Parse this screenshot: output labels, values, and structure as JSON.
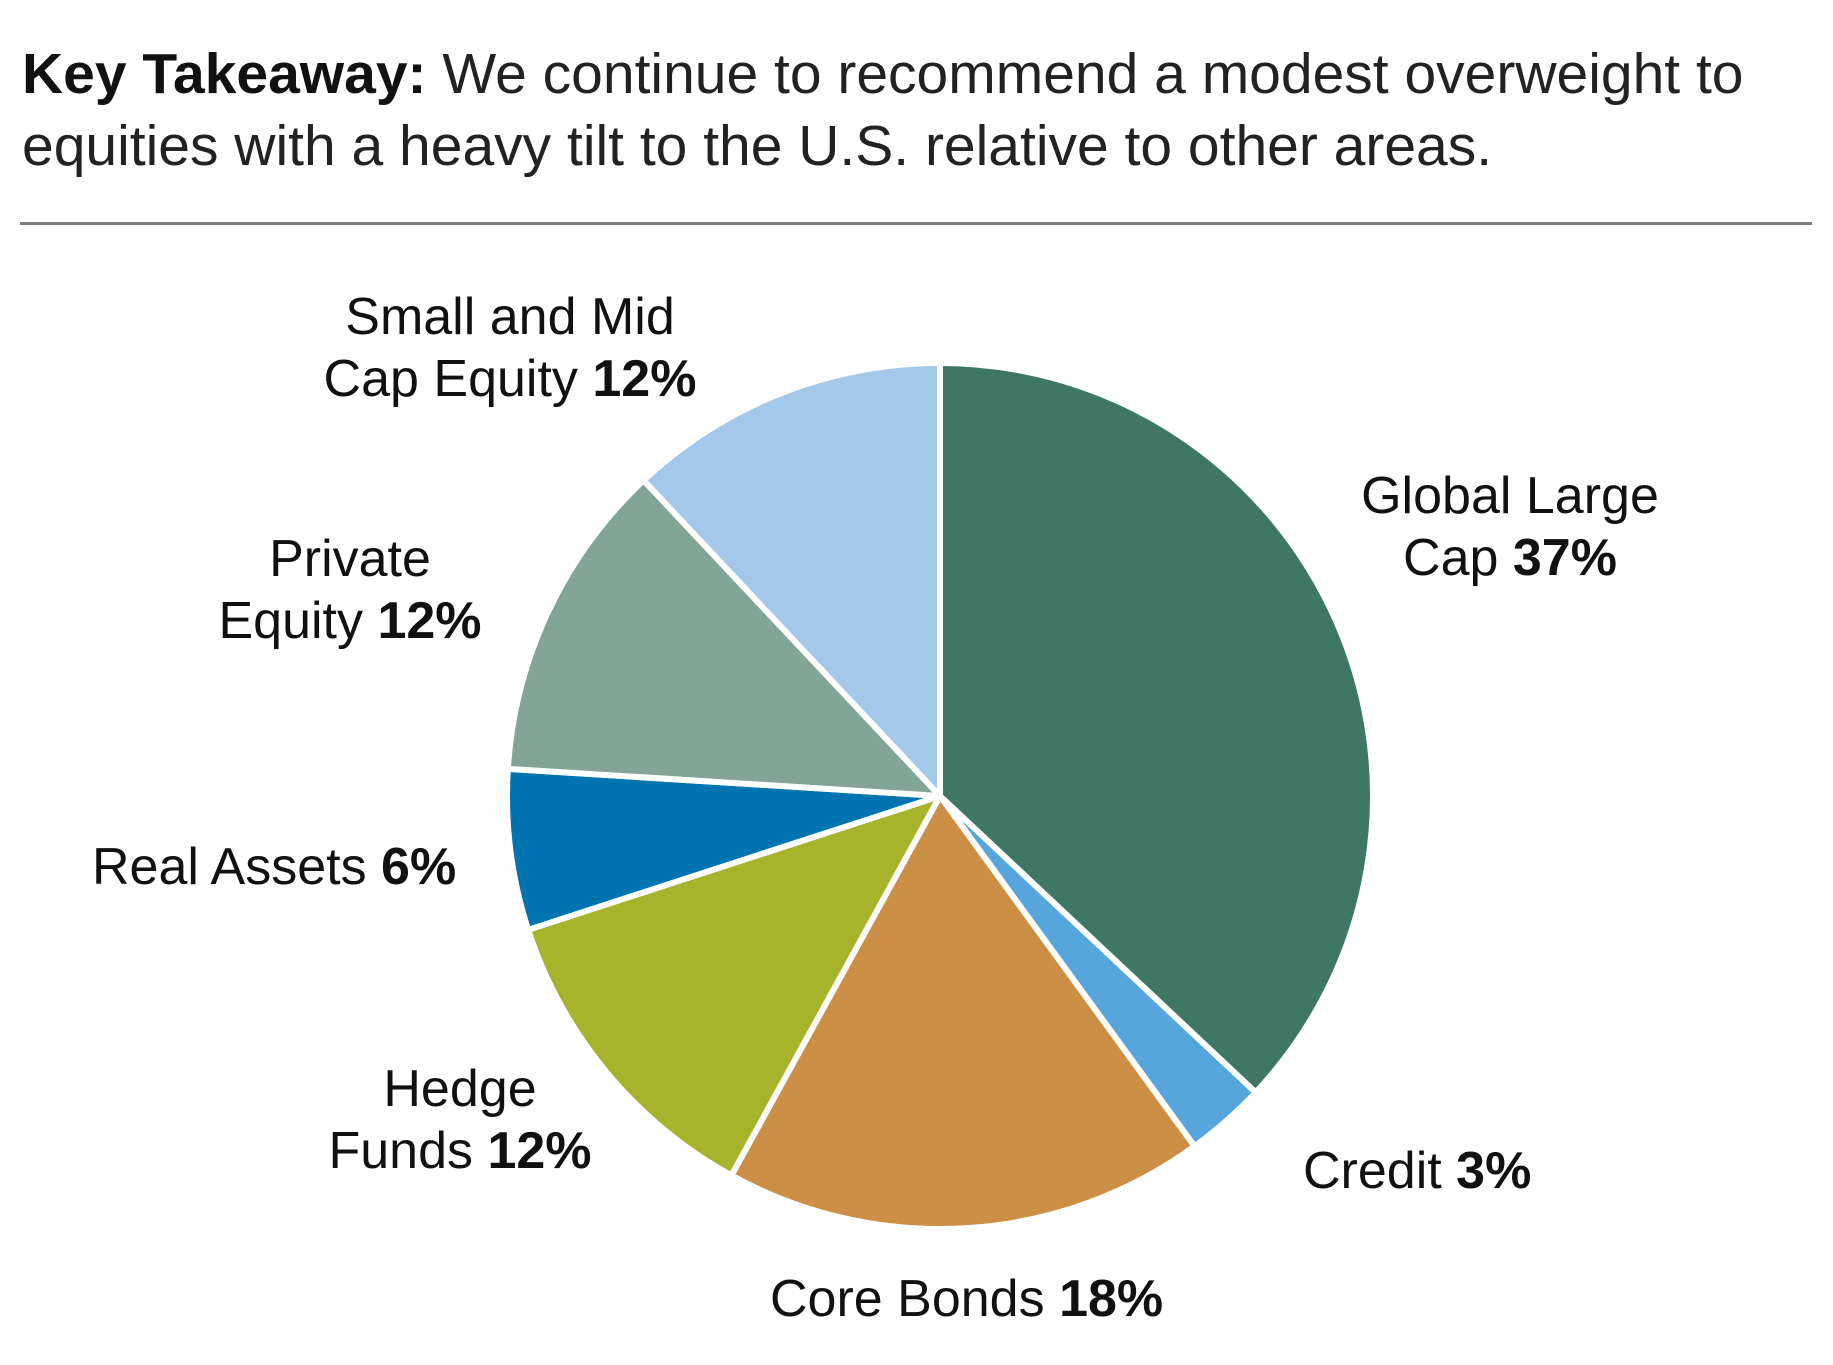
{
  "takeaway": {
    "lead": "Key Takeaway:",
    "text": "We continue to recommend a modest overweight to equities with a heavy tilt to the U.S. relative to other areas."
  },
  "chart_data": {
    "type": "pie",
    "start_angle_deg": 0,
    "direction": "clockwise",
    "slices": [
      {
        "line1": "Global Large",
        "line2": "Cap",
        "value": 37,
        "pct_label": "37%",
        "color": "#3e7763"
      },
      {
        "line1": "",
        "line2": "Credit",
        "value": 3,
        "pct_label": "3%",
        "color": "#56a6dd"
      },
      {
        "line1": "",
        "line2": "Core Bonds",
        "value": 18,
        "pct_label": "18%",
        "color": "#cd8e46"
      },
      {
        "line1": "Hedge",
        "line2": "Funds",
        "value": 12,
        "pct_label": "12%",
        "color": "#a6b42c"
      },
      {
        "line1": "",
        "line2": "Real Assets",
        "value": 6,
        "pct_label": "6%",
        "color": "#0074b1"
      },
      {
        "line1": "Private",
        "line2": "Equity",
        "value": 12,
        "pct_label": "12%",
        "color": "#83a597"
      },
      {
        "line1": "Small and Mid",
        "line2": "Cap Equity",
        "value": 12,
        "pct_label": "12%",
        "color": "#a3c8ea"
      }
    ]
  }
}
